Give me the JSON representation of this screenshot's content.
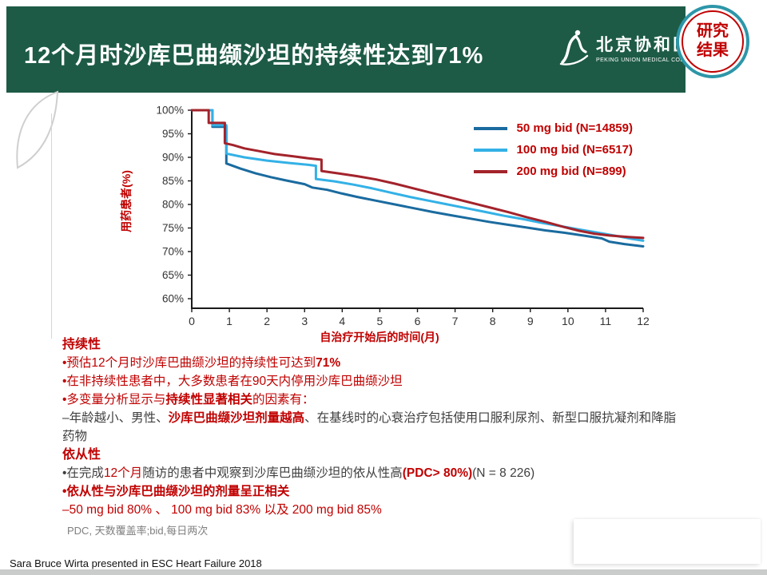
{
  "slide": {
    "title": "12个月时沙库巴曲缬沙坦的持续性达到71%",
    "badge": {
      "line1": "研究",
      "line2": "结果"
    },
    "logo": {
      "cn": "北京协和医院",
      "en": "PEKING UNION MEDICAL COLLEGE"
    },
    "footer": "Sara Bruce Wirta presented in ESC Heart Failure 2018"
  },
  "colors": {
    "red": "#C00000",
    "dark": "#3F3F3F",
    "gray": "#7F7F7F",
    "header_green": "#1D5B46",
    "badge_ring": "#2D96A8",
    "axis": "#1A1A1A"
  },
  "chart_data": {
    "type": "line",
    "title": "",
    "xlabel": "自治疗开始后的时间(月)",
    "ylabel": "用药患者(%)",
    "xlim": [
      0,
      12
    ],
    "ylim": [
      60,
      100
    ],
    "xticks": [
      0,
      1,
      2,
      3,
      4,
      5,
      6,
      7,
      8,
      9,
      10,
      11,
      12
    ],
    "yticks": [
      100,
      95,
      90,
      85,
      80,
      75,
      70,
      65,
      60
    ],
    "grid": false,
    "legend_position": "top-right",
    "series": [
      {
        "name": "50 mg bid (N=14859)",
        "color": "#1A6B9F",
        "points": [
          [
            0,
            100
          ],
          [
            0.55,
            100
          ],
          [
            0.55,
            96.5
          ],
          [
            0.92,
            96.5
          ],
          [
            0.92,
            88.7
          ],
          [
            1.3,
            87.6
          ],
          [
            1.7,
            86.6
          ],
          [
            2.1,
            85.8
          ],
          [
            2.5,
            85.1
          ],
          [
            3.0,
            84.3
          ],
          [
            3.2,
            83.6
          ],
          [
            3.6,
            83.1
          ],
          [
            4.0,
            82.3
          ],
          [
            4.4,
            81.6
          ],
          [
            4.9,
            80.8
          ],
          [
            5.4,
            80.0
          ],
          [
            5.9,
            79.2
          ],
          [
            6.4,
            78.4
          ],
          [
            6.9,
            77.7
          ],
          [
            7.4,
            77.0
          ],
          [
            7.9,
            76.3
          ],
          [
            8.4,
            75.7
          ],
          [
            8.9,
            75.1
          ],
          [
            9.4,
            74.5
          ],
          [
            9.9,
            74.0
          ],
          [
            10.4,
            73.4
          ],
          [
            10.9,
            72.8
          ],
          [
            11.1,
            72.1
          ],
          [
            11.5,
            71.6
          ],
          [
            12,
            71.1
          ]
        ]
      },
      {
        "name": "100 mg bid (N=6517)",
        "color": "#33B1E6",
        "points": [
          [
            0,
            100
          ],
          [
            0.55,
            100
          ],
          [
            0.55,
            96.8
          ],
          [
            0.92,
            96.8
          ],
          [
            0.92,
            90.8
          ],
          [
            1.4,
            90.0
          ],
          [
            2.0,
            89.3
          ],
          [
            2.6,
            88.8
          ],
          [
            3.1,
            88.4
          ],
          [
            3.3,
            88.2
          ],
          [
            3.3,
            85.4
          ],
          [
            3.8,
            84.9
          ],
          [
            4.3,
            84.2
          ],
          [
            4.8,
            83.4
          ],
          [
            5.3,
            82.5
          ],
          [
            5.8,
            81.6
          ],
          [
            6.3,
            80.8
          ],
          [
            6.8,
            80.0
          ],
          [
            7.3,
            79.2
          ],
          [
            7.8,
            78.4
          ],
          [
            8.3,
            77.6
          ],
          [
            8.8,
            76.9
          ],
          [
            9.3,
            76.1
          ],
          [
            9.8,
            75.4
          ],
          [
            10.3,
            74.7
          ],
          [
            10.8,
            74.0
          ],
          [
            11.3,
            73.3
          ],
          [
            11.7,
            72.7
          ],
          [
            12,
            72.3
          ]
        ]
      },
      {
        "name": "200 mg bid (N=899)",
        "color": "#A3232B",
        "points": [
          [
            0,
            100
          ],
          [
            0.45,
            100
          ],
          [
            0.45,
            97.3
          ],
          [
            0.88,
            97.3
          ],
          [
            0.88,
            93.0
          ],
          [
            1.1,
            92.6
          ],
          [
            1.4,
            91.9
          ],
          [
            1.8,
            91.3
          ],
          [
            2.2,
            90.7
          ],
          [
            2.7,
            90.2
          ],
          [
            3.1,
            89.8
          ],
          [
            3.45,
            89.5
          ],
          [
            3.45,
            87.1
          ],
          [
            3.9,
            86.6
          ],
          [
            4.4,
            86.0
          ],
          [
            4.9,
            85.3
          ],
          [
            5.4,
            84.4
          ],
          [
            5.9,
            83.4
          ],
          [
            6.4,
            82.4
          ],
          [
            6.9,
            81.4
          ],
          [
            7.4,
            80.4
          ],
          [
            7.9,
            79.4
          ],
          [
            8.4,
            78.4
          ],
          [
            8.9,
            77.3
          ],
          [
            9.4,
            76.3
          ],
          [
            9.9,
            75.2
          ],
          [
            10.3,
            74.4
          ],
          [
            10.7,
            73.8
          ],
          [
            11.1,
            73.4
          ],
          [
            11.6,
            73.1
          ],
          [
            12,
            72.9
          ]
        ]
      }
    ]
  },
  "content": {
    "paragraphs": [
      {
        "type": "heading",
        "segments": [
          {
            "text": "持续性",
            "color": "red",
            "bold": true
          }
        ]
      },
      {
        "type": "bullet",
        "segments": [
          {
            "text": "•预估12个月时沙库巴曲缬沙坦的持续性可达到",
            "color": "red"
          },
          {
            "text": "71%",
            "color": "red",
            "bold": true
          }
        ]
      },
      {
        "type": "bullet",
        "segments": [
          {
            "text": "•在非持续性患者中，大多数患者在90天内停用沙库巴曲缬沙坦",
            "color": "red"
          }
        ]
      },
      {
        "type": "bullet",
        "segments": [
          {
            "text": "•多变量分析显示与",
            "color": "red"
          },
          {
            "text": "持续性显著相关",
            "color": "red",
            "bold": true
          },
          {
            "text": "的因素有：",
            "color": "red"
          }
        ]
      },
      {
        "type": "dash",
        "segments": [
          {
            "text": "–年龄越小、男性、",
            "color": "dark"
          },
          {
            "text": "沙库巴曲缬沙坦剂量越高",
            "color": "red",
            "bold": true
          },
          {
            "text": "、在基线时的心衰治疗包括使用口服利尿剂、新型口服抗凝剂和降脂",
            "color": "dark"
          }
        ]
      },
      {
        "type": "plain",
        "segments": [
          {
            "text": "药物",
            "color": "dark"
          }
        ]
      },
      {
        "type": "heading",
        "segments": [
          {
            "text": "依从性",
            "color": "red",
            "bold": true
          }
        ]
      },
      {
        "type": "bullet",
        "segments": [
          {
            "text": "•在完成",
            "color": "dark"
          },
          {
            "text": "12个月",
            "color": "red"
          },
          {
            "text": "随访的患者中观察到沙库巴曲缬沙坦的依从性高",
            "color": "dark"
          },
          {
            "text": "(PDC> 80%)",
            "color": "red",
            "bold": true
          },
          {
            "text": "(N = 8 226)",
            "color": "dark"
          }
        ]
      },
      {
        "type": "bullet",
        "segments": [
          {
            "text": "•依从性与沙库巴曲缬沙坦的剂量呈正相关",
            "color": "red",
            "bold": true
          }
        ]
      },
      {
        "type": "dash",
        "segments": [
          {
            "text": "–50 mg bid 80% 、 100 mg bid 83% 以及 200 mg bid 85%",
            "color": "red"
          }
        ]
      },
      {
        "type": "note",
        "segments": [
          {
            "text": "PDC, 天数覆盖率;bid,每日两次",
            "color": "gray"
          }
        ]
      }
    ]
  }
}
